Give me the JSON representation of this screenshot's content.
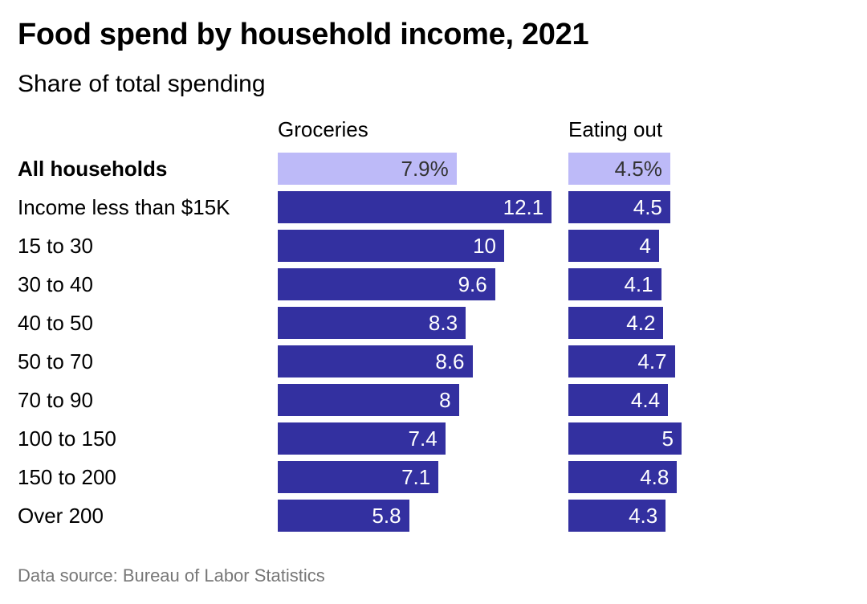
{
  "title": "Food spend by household income, 2021",
  "subtitle": "Share of total spending",
  "source": "Data source: Bureau of Labor Statistics",
  "colors": {
    "bar": "#3330a0",
    "highlight_bar": "#bdbaf8"
  },
  "chart_data": {
    "type": "bar",
    "orientation": "horizontal",
    "title": "Food spend by household income, 2021",
    "subtitle": "Share of total spending",
    "unit": "%",
    "categories": [
      "All households",
      "Income less than $15K",
      "15 to 30",
      "30 to 40",
      "40 to 50",
      "50 to 70",
      "70 to 90",
      "100 to 150",
      "150 to 200",
      "Over 200"
    ],
    "highlight_category": "All households",
    "series": [
      {
        "name": "Groceries",
        "values": [
          7.9,
          12.1,
          10,
          9.6,
          8.3,
          8.6,
          8,
          7.4,
          7.1,
          5.8
        ],
        "labels": [
          "7.9%",
          "12.1",
          "10",
          "9.6",
          "8.3",
          "8.6",
          "8",
          "7.4",
          "7.1",
          "5.8"
        ]
      },
      {
        "name": "Eating out",
        "values": [
          4.5,
          4.5,
          4,
          4.1,
          4.2,
          4.7,
          4.4,
          5,
          4.8,
          4.3
        ],
        "labels": [
          "4.5%",
          "4.5",
          "4",
          "4.1",
          "4.2",
          "4.7",
          "4.4",
          "5",
          "4.8",
          "4.3"
        ]
      }
    ],
    "source": "Data source: Bureau of Labor Statistics"
  }
}
